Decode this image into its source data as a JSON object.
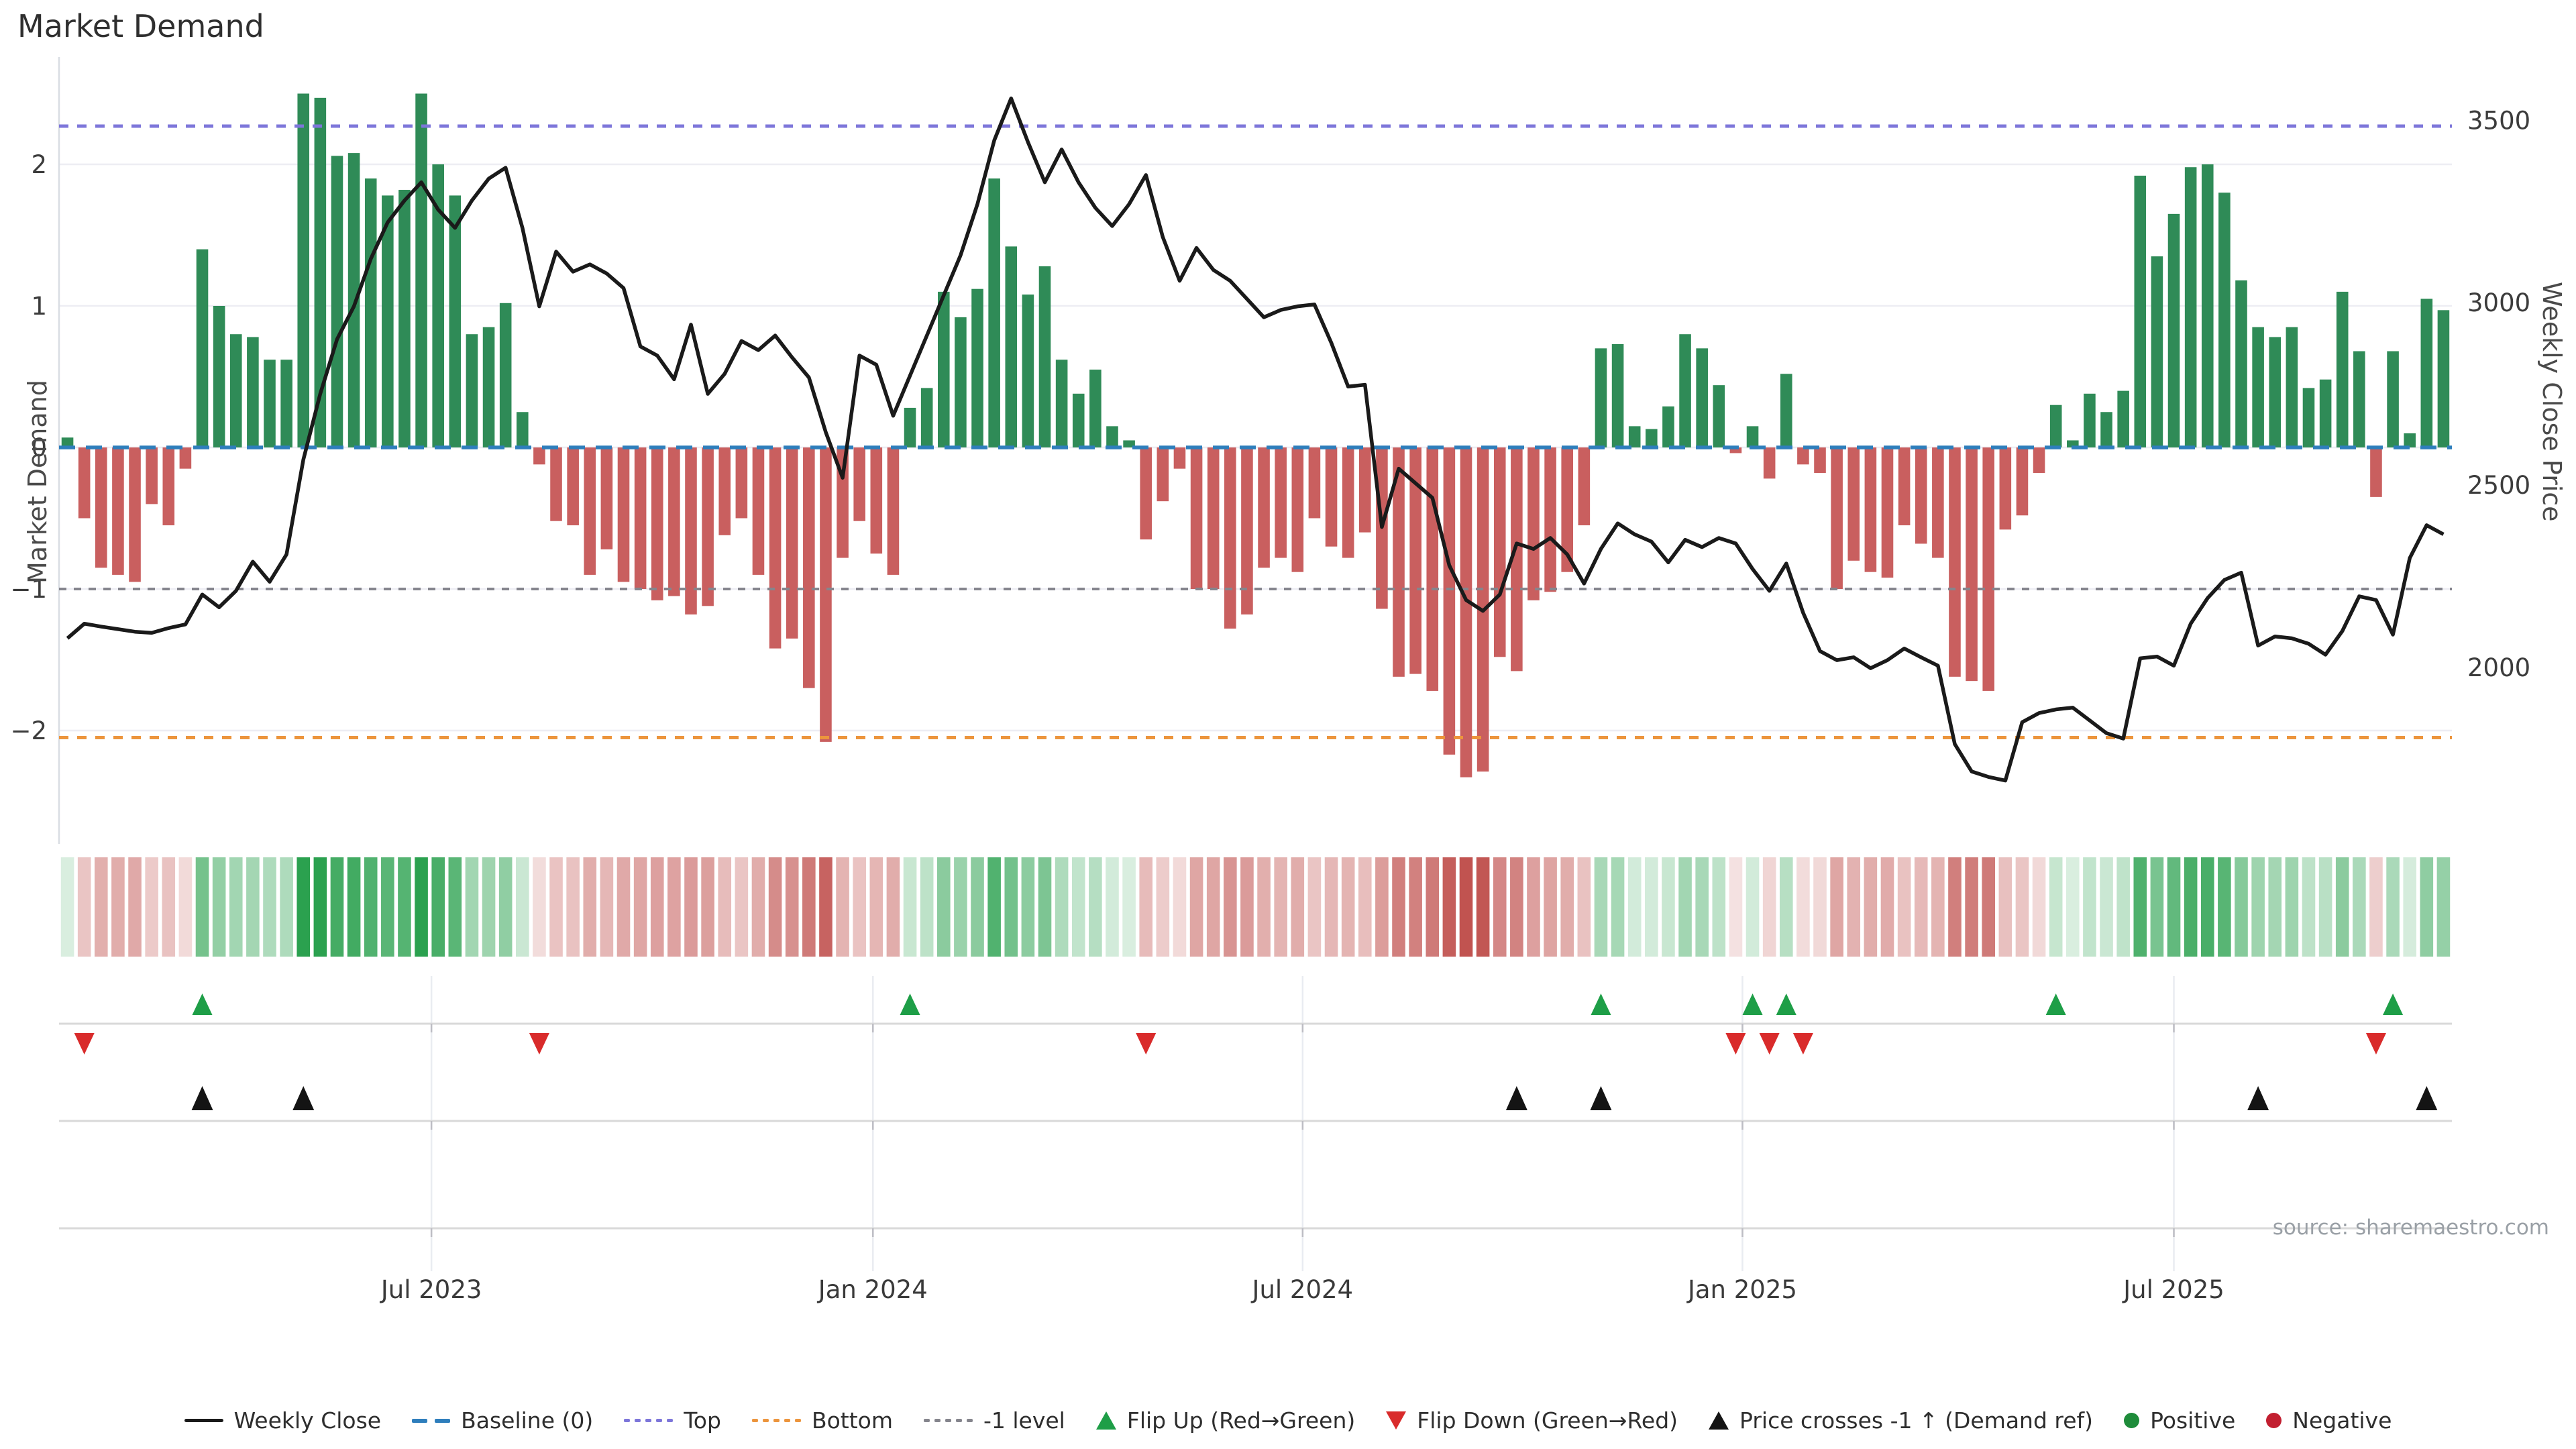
{
  "title": "Market Demand",
  "source": "source: sharemaestro.com",
  "axes": {
    "left_label": "Market Demand",
    "right_label": "Weekly Close Price",
    "left_ticks": [
      {
        "value": 2,
        "text": "2"
      },
      {
        "value": 1,
        "text": "1"
      },
      {
        "value": 0,
        "text": "0"
      },
      {
        "value": -1,
        "text": "−1"
      },
      {
        "value": -2,
        "text": "−2"
      }
    ],
    "right_ticks": [
      {
        "value": 3500,
        "text": "3500"
      },
      {
        "value": 3000,
        "text": "3000"
      },
      {
        "value": 2500,
        "text": "2500"
      },
      {
        "value": 2000,
        "text": "2000"
      }
    ],
    "x_ticks": [
      {
        "label": "Jul 2023",
        "index": 21.6
      },
      {
        "label": "Jan 2024",
        "index": 47.8
      },
      {
        "label": "Jul 2024",
        "index": 73.3
      },
      {
        "label": "Jan 2025",
        "index": 99.4
      },
      {
        "label": "Jul 2025",
        "index": 125.0
      }
    ]
  },
  "colors": {
    "bar_positive": "#2f8b57",
    "bar_negative": "#c95f5f",
    "price_line": "#1a1a1a",
    "baseline": "#2e7ebc",
    "top_line": "#7d76da",
    "bottom_line": "#ec953d",
    "minus1_line": "#85858d",
    "gridline": "#ededf3",
    "band_line": "#d9d9d9",
    "band_gridline": "#e9ecf1",
    "flip_up": "#1e9e47",
    "flip_down": "#d92b2b",
    "price_cross": "#141414",
    "heat_green": "#2ba14f",
    "heat_red": "#c0504d"
  },
  "chart_data": {
    "type": "bar+line",
    "x_unit": "week",
    "n_weeks": 142,
    "x_tick_labels": [
      "Jul 2023",
      "Jan 2024",
      "Jul 2024",
      "Jan 2025",
      "Jul 2025"
    ],
    "demand_ylim": [
      -2.8,
      2.71
    ],
    "price_ylim": [
      1517,
      3654
    ],
    "reference_levels": {
      "baseline": 0,
      "top": 2.27,
      "bottom": -2.05,
      "minus_one": -1
    },
    "series": [
      {
        "name": "Market Demand",
        "type": "bar",
        "axis": "left",
        "values": [
          0.07,
          -0.5,
          -0.85,
          -0.9,
          -0.95,
          -0.4,
          -0.55,
          -0.15,
          1.4,
          1.0,
          0.8,
          0.78,
          0.62,
          0.62,
          2.5,
          2.47,
          2.06,
          2.08,
          1.9,
          1.78,
          1.82,
          2.5,
          2.0,
          1.78,
          0.8,
          0.85,
          1.02,
          0.25,
          -0.12,
          -0.52,
          -0.55,
          -0.9,
          -0.72,
          -0.95,
          -1.0,
          -1.08,
          -1.05,
          -1.18,
          -1.12,
          -0.62,
          -0.5,
          -0.9,
          -1.42,
          -1.35,
          -1.7,
          -2.08,
          -0.78,
          -0.52,
          -0.75,
          -0.9,
          0.28,
          0.42,
          1.1,
          0.92,
          1.12,
          1.9,
          1.42,
          1.08,
          1.28,
          0.62,
          0.38,
          0.55,
          0.15,
          0.05,
          -0.65,
          -0.38,
          -0.15,
          -1.0,
          -1.0,
          -1.28,
          -1.18,
          -0.85,
          -0.78,
          -0.88,
          -0.5,
          -0.7,
          -0.78,
          -0.6,
          -1.14,
          -1.62,
          -1.6,
          -1.72,
          -2.17,
          -2.33,
          -2.29,
          -1.48,
          -1.58,
          -1.08,
          -1.02,
          -0.88,
          -0.55,
          0.7,
          0.73,
          0.15,
          0.13,
          0.29,
          0.8,
          0.7,
          0.44,
          -0.04,
          0.15,
          -0.22,
          0.52,
          -0.12,
          -0.18,
          -1.0,
          -0.8,
          -0.88,
          -0.92,
          -0.55,
          -0.68,
          -0.78,
          -1.62,
          -1.65,
          -1.72,
          -0.58,
          -0.48,
          -0.18,
          0.3,
          0.05,
          0.38,
          0.25,
          0.4,
          1.92,
          1.35,
          1.65,
          1.98,
          2.0,
          1.8,
          1.18,
          0.85,
          0.78,
          0.85,
          0.42,
          0.48,
          1.1,
          0.68,
          -0.35,
          0.68,
          0.1,
          1.05,
          0.97
        ]
      },
      {
        "name": "Weekly Close",
        "type": "line",
        "axis": "right",
        "values": [
          2080,
          2120,
          2112,
          2105,
          2098,
          2095,
          2108,
          2118,
          2200,
          2165,
          2210,
          2290,
          2235,
          2310,
          2570,
          2750,
          2900,
          2990,
          3120,
          3220,
          3280,
          3330,
          3255,
          3205,
          3280,
          3340,
          3370,
          3205,
          2990,
          3140,
          3085,
          3105,
          3080,
          3040,
          2880,
          2855,
          2790,
          2940,
          2750,
          2805,
          2895,
          2870,
          2910,
          2850,
          2795,
          2645,
          2520,
          2855,
          2830,
          2690,
          2800,
          2910,
          3020,
          3130,
          3270,
          3445,
          3560,
          3440,
          3330,
          3420,
          3330,
          3260,
          3210,
          3270,
          3350,
          3180,
          3060,
          3150,
          3090,
          3060,
          3010,
          2960,
          2980,
          2990,
          2995,
          2890,
          2770,
          2775,
          2385,
          2545,
          2505,
          2465,
          2280,
          2185,
          2155,
          2200,
          2340,
          2325,
          2355,
          2310,
          2230,
          2325,
          2395,
          2365,
          2345,
          2288,
          2350,
          2330,
          2355,
          2340,
          2270,
          2210,
          2285,
          2150,
          2045,
          2020,
          2028,
          1998,
          2020,
          2052,
          2028,
          2005,
          1790,
          1715,
          1700,
          1690,
          1850,
          1875,
          1885,
          1890,
          1855,
          1820,
          1805,
          2025,
          2030,
          2005,
          2120,
          2190,
          2240,
          2260,
          2060,
          2085,
          2080,
          2065,
          2035,
          2100,
          2195,
          2185,
          2090,
          2300,
          2390,
          2365
        ]
      }
    ],
    "heatmap": {
      "description": "weekly demand sign/intensity strip derived from Market Demand values",
      "positive_color": "#2ba14f",
      "negative_color": "#c0504d"
    },
    "markers": {
      "flip_up_weeks": [
        8,
        50,
        91,
        100,
        102,
        118,
        138
      ],
      "flip_down_weeks": [
        1,
        28,
        64,
        99,
        101,
        103,
        137
      ],
      "price_cross_minus1_weeks": [
        8,
        14,
        86,
        91,
        130,
        140
      ]
    }
  },
  "legend": [
    {
      "glyph": "line",
      "color": "#1a1a1a",
      "label": "Weekly Close"
    },
    {
      "glyph": "dashes",
      "color": "#2e7ebc",
      "label": "Baseline (0)"
    },
    {
      "glyph": "dots",
      "color": "#7d76da",
      "label": "Top"
    },
    {
      "glyph": "dots",
      "color": "#ec953d",
      "label": "Bottom"
    },
    {
      "glyph": "dots",
      "color": "#85858d",
      "label": "-1 level"
    },
    {
      "glyph": "tri-up",
      "color": "#1e9e47",
      "label": "Flip Up (Red→Green)"
    },
    {
      "glyph": "tri-down",
      "color": "#d92b2b",
      "label": "Flip Down (Green→Red)"
    },
    {
      "glyph": "tri-up",
      "color": "#141414",
      "label": "Price crosses -1 ↑ (Demand ref)"
    },
    {
      "glyph": "circle",
      "color": "#1e8c3a",
      "label": "Positive"
    },
    {
      "glyph": "circle",
      "color": "#c21f30",
      "label": "Negative"
    }
  ]
}
